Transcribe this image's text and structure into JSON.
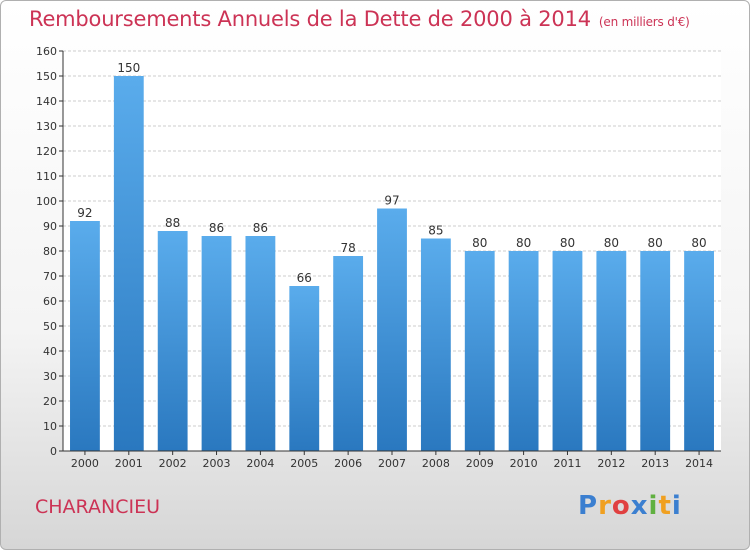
{
  "chart_data": {
    "type": "bar",
    "title": "Remboursements Annuels de la Dette de 2000 à 2014",
    "subtitle": "(en milliers d'€)",
    "categories": [
      "2000",
      "2001",
      "2002",
      "2003",
      "2004",
      "2005",
      "2006",
      "2007",
      "2008",
      "2009",
      "2010",
      "2011",
      "2012",
      "2013",
      "2014"
    ],
    "values": [
      92,
      150,
      88,
      86,
      86,
      66,
      78,
      97,
      85,
      80,
      80,
      80,
      80,
      80,
      80
    ],
    "ylim": [
      0,
      160
    ],
    "ytick_step": 10,
    "grid": true,
    "bar_color": "#3d8fd6",
    "title_color": "#cc3355"
  },
  "commune": "CHARANCIEU",
  "logo": {
    "letters": [
      "P",
      "r",
      "o",
      "x",
      "i",
      "t",
      "i"
    ],
    "colors": [
      "#3b7fd0",
      "#f0a020",
      "#e04040",
      "#3b7fd0",
      "#60b040",
      "#f0a020",
      "#3b7fd0"
    ]
  }
}
